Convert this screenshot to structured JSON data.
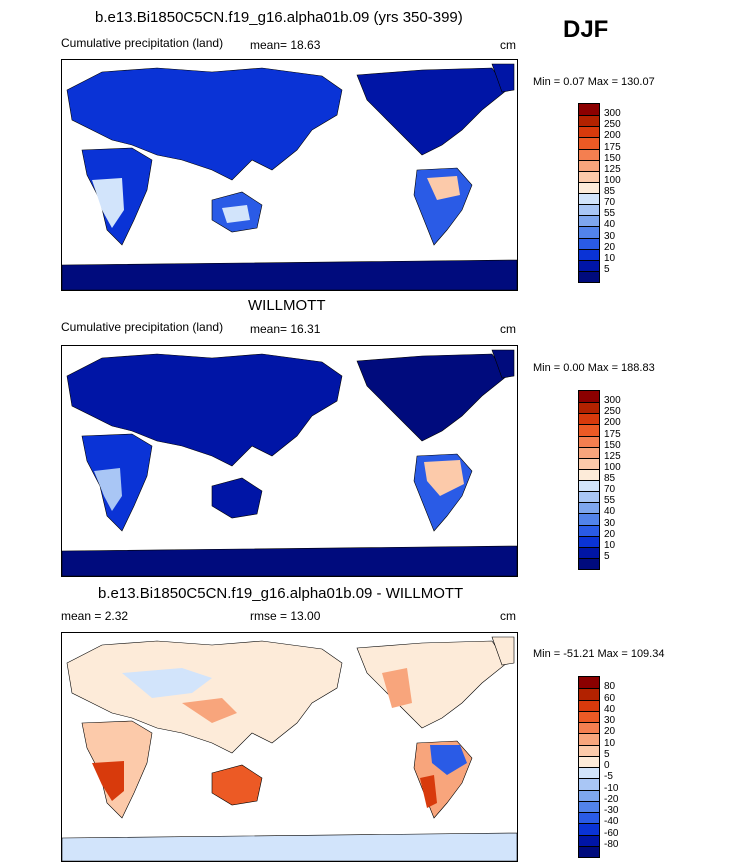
{
  "season": "DJF",
  "panels": [
    {
      "title": "b.e13.Bi1850C5CN.f19_g16.alpha01b.09 (yrs 350-399)",
      "left_label": "Cumulative precipitation (land)",
      "mean_label": "mean=  18.63",
      "units": "cm",
      "minmax": "Min =   0.07 Max = 130.07",
      "palette": "abs",
      "labels": [
        "300",
        "250",
        "200",
        "175",
        "150",
        "125",
        "100",
        "85",
        "70",
        "55",
        "40",
        "30",
        "20",
        "10",
        "5"
      ],
      "colors": [
        "#8b0000",
        "#b22200",
        "#d83a0c",
        "#ec5a25",
        "#f47f50",
        "#f8a57c",
        "#fccaaa",
        "#fdebd9",
        "#d2e4fb",
        "#a9c6f5",
        "#7ea6ee",
        "#5283ea",
        "#2a5be6",
        "#0a33d6",
        "#0015a6",
        "#000b7d"
      ]
    },
    {
      "title": "WILLMOTT",
      "left_label": "Cumulative precipitation (land)",
      "mean_label": "mean=  16.31",
      "units": "cm",
      "minmax": "Min =   0.00 Max = 188.83",
      "palette": "abs",
      "labels": [
        "300",
        "250",
        "200",
        "175",
        "150",
        "125",
        "100",
        "85",
        "70",
        "55",
        "40",
        "30",
        "20",
        "10",
        "5"
      ],
      "colors": [
        "#8b0000",
        "#b22200",
        "#d83a0c",
        "#ec5a25",
        "#f47f50",
        "#f8a57c",
        "#fccaaa",
        "#fdebd9",
        "#d2e4fb",
        "#a9c6f5",
        "#7ea6ee",
        "#5283ea",
        "#2a5be6",
        "#0a33d6",
        "#0015a6",
        "#000b7d"
      ]
    },
    {
      "title": "b.e13.Bi1850C5CN.f19_g16.alpha01b.09 - WILLMOTT",
      "left_label": "mean =   2.32",
      "mean_label": "rmse =  13.00",
      "units": "cm",
      "minmax": "Min = -51.21 Max = 109.34",
      "palette": "diff",
      "labels": [
        "80",
        "60",
        "40",
        "30",
        "20",
        "10",
        "5",
        "0",
        "-5",
        "-10",
        "-20",
        "-30",
        "-40",
        "-60",
        "-80"
      ],
      "colors": [
        "#8b0000",
        "#b22200",
        "#d83a0c",
        "#ec5a25",
        "#f47f50",
        "#f8a57c",
        "#fccaaa",
        "#fdebd9",
        "#d2e4fb",
        "#a9c6f5",
        "#7ea6ee",
        "#5283ea",
        "#2a5be6",
        "#0a33d6",
        "#0015a6",
        "#000b7d"
      ]
    }
  ]
}
